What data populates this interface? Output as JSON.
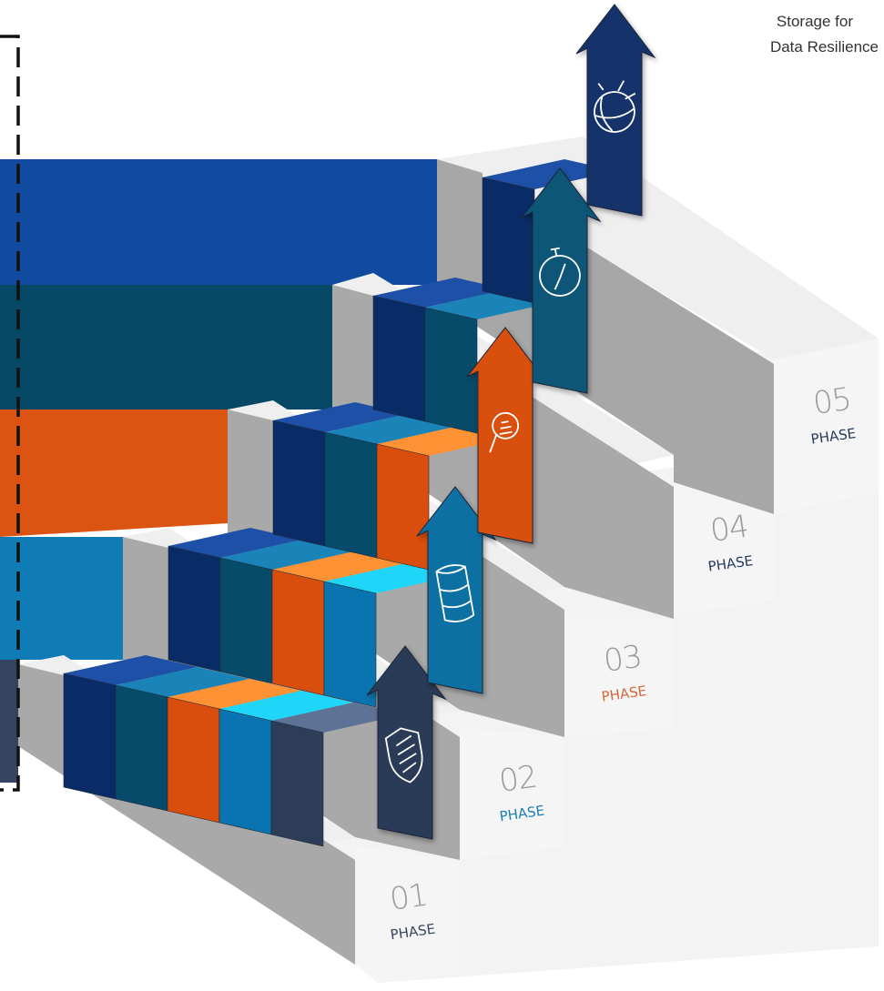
{
  "title": {
    "line1": "Storage for",
    "line2": "Data Resilience"
  },
  "phases": [
    {
      "number": "01",
      "label": "PHASE",
      "label_color": "#3a4560",
      "top_color": "#5e7296",
      "front_color": "#2e3d57",
      "left_bar_color": "#34435f",
      "arrow_color": "#2c3b58",
      "icon": "shield-icon"
    },
    {
      "number": "02",
      "label": "PHASE",
      "label_color": "#1c7fb4",
      "top_color": "#20d6f8",
      "front_color": "#0a74b0",
      "left_bar_color": "#0f7cb6",
      "arrow_color": "#0d6fa3",
      "icon": "database-icon"
    },
    {
      "number": "03",
      "label": "PHASE",
      "label_color": "#d5673a",
      "top_color": "#fe9235",
      "front_color": "#d94e0c",
      "left_bar_color": "#dc5411",
      "arrow_color": "#d9500e",
      "icon": "search-bug-icon"
    },
    {
      "number": "04",
      "label": "PHASE",
      "label_color": "#243b5e",
      "top_color": "#1a83b7",
      "front_color": "#064b6a",
      "left_bar_color": "#064865",
      "arrow_color": "#0b5678",
      "icon": "stopwatch-icon"
    },
    {
      "number": "05",
      "label": "PHASE",
      "label_color": "#243b5e",
      "top_color": "#1e50a7",
      "front_color": "#0a2c66",
      "left_bar_color": "#114ba0",
      "arrow_color": "#13336a",
      "icon": "ibm-globe-icon"
    }
  ],
  "stair_colors": {
    "top": "#f2f2f2",
    "side": "#a9a9a9",
    "riser": "#ececec",
    "end_face": "#f5f5f5"
  },
  "frame": {
    "style": "dashed",
    "color": "#111111"
  }
}
